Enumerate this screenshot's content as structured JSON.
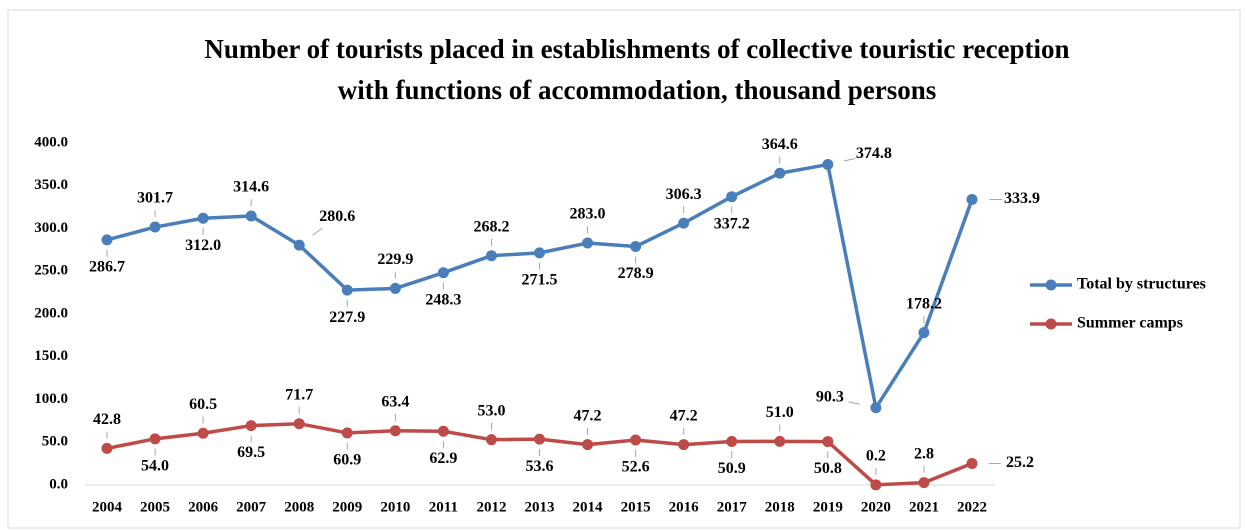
{
  "chart_data": {
    "type": "line",
    "title": [
      "Number of tourists placed in establishments of collective touristic reception",
      "with functions of accommodation, thousand persons"
    ],
    "categories": [
      "2004",
      "2005",
      "2006",
      "2007",
      "2008",
      "2009",
      "2010",
      "2011",
      "2012",
      "2013",
      "2014",
      "2015",
      "2016",
      "2017",
      "2018",
      "2019",
      "2020",
      "2021",
      "2022"
    ],
    "series": [
      {
        "name": "Total by structures",
        "color": "#4a7ebb",
        "values": [
          286.7,
          301.7,
          312.0,
          314.6,
          280.6,
          227.9,
          229.9,
          248.3,
          268.2,
          271.5,
          283.0,
          278.9,
          306.3,
          337.2,
          364.6,
          374.8,
          90.3,
          178.2,
          333.9
        ],
        "value_labels": [
          "286.7",
          "301.7",
          "312.0",
          "314.6",
          "280.6",
          "227.9",
          "229.9",
          "248.3",
          "268.2",
          "271.5",
          "283.0",
          "278.9",
          "306.3",
          "337.2",
          "364.6",
          "374.8",
          "90.3",
          "178.2",
          "333.9"
        ]
      },
      {
        "name": "Summer camps",
        "color": "#be4b48",
        "values": [
          42.8,
          54.0,
          60.5,
          69.5,
          71.7,
          60.9,
          63.4,
          62.9,
          53.0,
          53.6,
          47.2,
          52.6,
          47.2,
          50.9,
          51.0,
          50.8,
          0.2,
          2.8,
          25.2
        ],
        "value_labels": [
          "42.8",
          "54.0",
          "60.5",
          "69.5",
          "71.7",
          "60.9",
          "63.4",
          "62.9",
          "53.0",
          "53.6",
          "47.2",
          "52.6",
          "47.2",
          "50.9",
          "51.0",
          "50.8",
          "0.2",
          "2.8",
          "25.2"
        ]
      }
    ],
    "ylim": [
      0,
      400
    ],
    "yticks": [
      {
        "value": 0,
        "label": "0.0"
      },
      {
        "value": 50,
        "label": "50.0"
      },
      {
        "value": 100,
        "label": "100.0"
      },
      {
        "value": 150,
        "label": "150.0"
      },
      {
        "value": 200,
        "label": "200.0"
      },
      {
        "value": 250,
        "label": "250.0"
      },
      {
        "value": 300,
        "label": "300.0"
      },
      {
        "value": 350,
        "label": "350.0"
      },
      {
        "value": 400,
        "label": "400.0"
      }
    ],
    "grid": false,
    "legend": "right"
  }
}
